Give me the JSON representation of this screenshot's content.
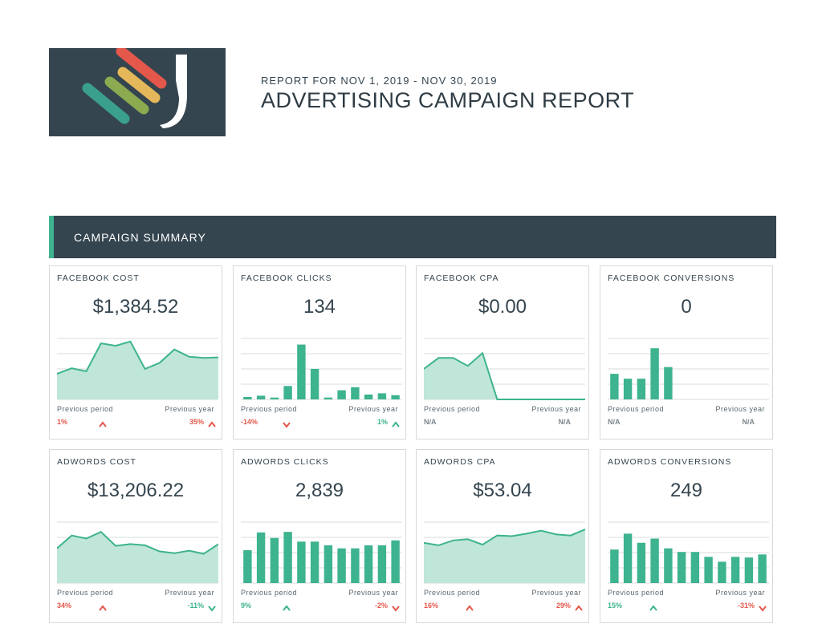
{
  "header": {
    "subtitle": "REPORT FOR NOV 1, 2019 - NOV 30, 2019",
    "title": "ADVERTISING CAMPAIGN REPORT"
  },
  "section": {
    "title": "CAMPAIGN SUMMARY"
  },
  "colors": {
    "dark": "#35454f",
    "accent": "#3db38f",
    "bad": "#e4574b",
    "area": "#bfe6d9"
  },
  "cards": [
    {
      "label": "FACEBOOK COST",
      "value": "$1,384.52",
      "chart": "area",
      "points": [
        0.42,
        0.51,
        0.46,
        0.92,
        0.88,
        0.95,
        0.5,
        0.6,
        0.82,
        0.7,
        0.68,
        0.69
      ],
      "prev_label": "Previous period",
      "prev_change": "1%",
      "prev_dir": "up",
      "prev_tone": "bad",
      "year_label": "Previous year",
      "year_change": "35%",
      "year_dir": "up",
      "year_tone": "bad"
    },
    {
      "label": "FACEBOOK CLICKS",
      "value": "134",
      "chart": "bar",
      "points": [
        0.04,
        0.06,
        0.03,
        0.22,
        0.9,
        0.5,
        0.03,
        0.15,
        0.2,
        0.08,
        0.1,
        0.07
      ],
      "prev_label": "Previous period",
      "prev_change": "-14%",
      "prev_dir": "down",
      "prev_tone": "bad",
      "year_label": "Previous year",
      "year_change": "1%",
      "year_dir": "up",
      "year_tone": "good"
    },
    {
      "label": "FACEBOOK CPA",
      "value": "$0.00",
      "chart": "area",
      "points": [
        0.5,
        0.68,
        0.68,
        0.55,
        0.76,
        0,
        0,
        0,
        0,
        0,
        0,
        0
      ],
      "prev_label": "Previous period",
      "prev_change": "N/A",
      "prev_dir": "none",
      "prev_tone": "na",
      "year_label": "Previous year",
      "year_change": "N/A",
      "year_dir": "none",
      "year_tone": "na"
    },
    {
      "label": "FACEBOOK CONVERSIONS",
      "value": "0",
      "chart": "bar",
      "points": [
        0.42,
        0.34,
        0.34,
        0.84,
        0.53,
        0,
        0,
        0,
        0,
        0,
        0,
        0
      ],
      "prev_label": "Previous period",
      "prev_change": "N/A",
      "prev_dir": "none",
      "prev_tone": "na",
      "year_label": "Previous year",
      "year_change": "N/A",
      "year_dir": "none",
      "year_tone": "na"
    },
    {
      "label": "ADWORDS COST",
      "value": "$13,206.22",
      "chart": "area",
      "points": [
        0.57,
        0.78,
        0.73,
        0.84,
        0.61,
        0.64,
        0.62,
        0.52,
        0.49,
        0.53,
        0.48,
        0.64
      ],
      "prev_label": "Previous period",
      "prev_change": "34%",
      "prev_dir": "up",
      "prev_tone": "bad",
      "year_label": "Previous year",
      "year_change": "-11%",
      "year_dir": "down",
      "year_tone": "good"
    },
    {
      "label": "ADWORDS CLICKS",
      "value": "2,839",
      "chart": "bar",
      "points": [
        0.54,
        0.83,
        0.74,
        0.84,
        0.68,
        0.68,
        0.62,
        0.57,
        0.57,
        0.62,
        0.62,
        0.7
      ],
      "prev_label": "Previous period",
      "prev_change": "9%",
      "prev_dir": "up",
      "prev_tone": "good",
      "year_label": "Previous year",
      "year_change": "-2%",
      "year_dir": "down",
      "year_tone": "bad"
    },
    {
      "label": "ADWORDS CPA",
      "value": "$53.04",
      "chart": "area",
      "points": [
        0.66,
        0.62,
        0.7,
        0.72,
        0.63,
        0.78,
        0.77,
        0.81,
        0.86,
        0.8,
        0.78,
        0.88
      ],
      "prev_label": "Previous period",
      "prev_change": "16%",
      "prev_dir": "up",
      "prev_tone": "bad",
      "year_label": "Previous year",
      "year_change": "29%",
      "year_dir": "up",
      "year_tone": "bad"
    },
    {
      "label": "ADWORDS CONVERSIONS",
      "value": "249",
      "chart": "bar",
      "points": [
        0.55,
        0.81,
        0.66,
        0.73,
        0.57,
        0.51,
        0.51,
        0.43,
        0.35,
        0.43,
        0.42,
        0.47
      ],
      "prev_label": "Previous period",
      "prev_change": "15%",
      "prev_dir": "up",
      "prev_tone": "good",
      "year_label": "Previous year",
      "year_change": "-31%",
      "year_dir": "down",
      "year_tone": "bad"
    }
  ]
}
